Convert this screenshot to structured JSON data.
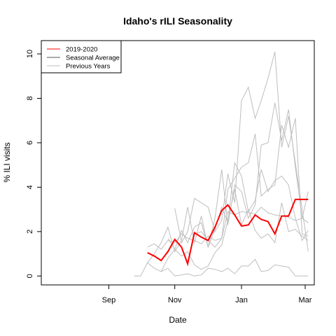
{
  "chart_data": {
    "type": "line",
    "title": "Idaho's rILI Seasonality",
    "xlabel": "Date",
    "ylabel": "% ILI visits",
    "x_unit": "weeks since Jul 1",
    "xlim": [
      0.0,
      36.0
    ],
    "ylim": [
      -0.4,
      10.6
    ],
    "x_ticks": [
      {
        "label": "Sep",
        "value": 8.9
      },
      {
        "label": "Nov",
        "value": 17.6
      },
      {
        "label": "Jan",
        "value": 26.4
      },
      {
        "label": "Mar",
        "value": 34.8
      }
    ],
    "y_ticks": [
      0,
      2,
      4,
      6,
      8,
      10
    ],
    "grid": false,
    "legend_position": "top-left",
    "legend": [
      {
        "label": "2019-2020",
        "color": "#ff0000"
      },
      {
        "label": "Seasonal Average",
        "color": "#555555"
      },
      {
        "label": "Previous Years",
        "color": "#bebebe"
      }
    ],
    "series": [
      {
        "name": "2019-2020",
        "color": "#ff0000",
        "x": [
          14.0,
          14.9,
          15.8,
          16.7,
          17.6,
          18.5,
          19.3,
          20.2,
          21.1,
          22.0,
          22.9,
          23.8,
          24.6,
          25.5,
          26.4,
          27.3,
          28.2,
          29.0,
          29.9,
          30.8,
          31.7,
          32.6,
          33.5,
          34.4,
          35.2
        ],
        "y": [
          1.05,
          0.9,
          0.7,
          1.1,
          1.65,
          1.3,
          0.55,
          1.95,
          1.75,
          1.6,
          2.2,
          2.95,
          3.2,
          2.75,
          2.25,
          2.3,
          2.75,
          2.55,
          2.45,
          1.9,
          2.7,
          2.7,
          3.45,
          3.45,
          3.45
        ]
      },
      {
        "name": "Seasonal Average",
        "color": "#555555",
        "x": [],
        "y": []
      },
      {
        "name": "Previous Years",
        "color": "#bebebe",
        "lines": [
          {
            "x": [
              14.0,
              14.9,
              15.8,
              16.7,
              17.6,
              18.5,
              19.3,
              20.2,
              21.1,
              22.0,
              22.9,
              23.8,
              24.6,
              25.5,
              26.4,
              27.3,
              28.2,
              29.0,
              29.9,
              30.8,
              31.7,
              32.6,
              33.5,
              34.4,
              35.2
            ],
            "y": [
              1.3,
              1.45,
              1.2,
              1.6,
              1.5,
              1.9,
              1.7,
              1.6,
              1.45,
              1.8,
              1.6,
              1.7,
              2.9,
              2.75,
              2.9,
              2.85,
              2.8,
              3.1,
              2.85,
              2.75,
              2.7,
              2.65,
              2.5,
              2.6,
              2.4
            ]
          },
          {
            "x": [
              14.0,
              14.9,
              15.8,
              16.7,
              17.6,
              18.5,
              19.3,
              20.2,
              21.1,
              22.0,
              22.9,
              23.8,
              24.6,
              25.5,
              26.4,
              27.3,
              28.2,
              29.0,
              29.9,
              30.8,
              31.7,
              32.6,
              33.5,
              34.4,
              35.2
            ],
            "y": [
              0.6,
              1.0,
              1.5,
              2.2,
              1.1,
              1.6,
              3.1,
              1.5,
              2.7,
              1.3,
              2.6,
              4.8,
              2.3,
              4.1,
              3.8,
              2.6,
              3.2,
              5.9,
              6.0,
              7.8,
              6.1,
              7.5,
              4.9,
              2.6,
              3.8
            ]
          },
          {
            "x": [
              16.7,
              17.6,
              18.5,
              19.3,
              20.2,
              21.1,
              22.0,
              22.9,
              23.8,
              24.6,
              25.5,
              26.4,
              27.3,
              28.2,
              29.0,
              29.9,
              30.8,
              31.7,
              32.6,
              33.5,
              34.4,
              35.2
            ],
            "y": [
              1.7,
              1.2,
              2.05,
              1.5,
              2.2,
              2.4,
              1.3,
              2.1,
              3.1,
              2.4,
              5.1,
              4.5,
              2.9,
              3.4,
              4.8,
              3.8,
              4.3,
              4.5,
              4.1,
              2.6,
              1.6,
              2.05
            ]
          },
          {
            "x": [
              17.6,
              18.5,
              19.3,
              20.2,
              21.1,
              22.0,
              22.9,
              23.8,
              24.6,
              25.5,
              26.4,
              27.3,
              28.2,
              29.0,
              29.9,
              30.8,
              31.7,
              32.6,
              33.5,
              34.4,
              35.2
            ],
            "y": [
              3.05,
              1.5,
              2.0,
              3.5,
              3.3,
              3.1,
              2.0,
              2.5,
              4.6,
              3.3,
              7.9,
              8.5,
              7.1,
              7.9,
              8.9,
              10.1,
              5.8,
              7.2,
              5.1,
              3.0,
              1.1
            ]
          },
          {
            "x": [
              20.2,
              21.1,
              22.0,
              22.9,
              23.8,
              24.6,
              25.5,
              26.4,
              27.3,
              28.2,
              29.0,
              29.9,
              30.8,
              31.7,
              32.6,
              33.5,
              34.4,
              35.2
            ],
            "y": [
              1.9,
              2.0,
              1.6,
              1.3,
              1.7,
              3.9,
              4.4,
              4.9,
              5.1,
              6.4,
              3.6,
              3.9,
              4.1,
              6.8,
              5.8,
              7.1,
              1.9,
              1.8
            ]
          },
          {
            "x": [
              15.8,
              16.7,
              17.6,
              18.5,
              19.3,
              20.2,
              21.1,
              22.0,
              22.9,
              23.8,
              24.6,
              25.5,
              26.4,
              27.3,
              28.2,
              29.0,
              29.9,
              30.8,
              31.7,
              32.6,
              33.5,
              34.4,
              35.2
            ],
            "y": [
              0.2,
              0.8,
              1.2,
              0.9,
              1.1,
              0.5,
              0.3,
              0.45,
              1.05,
              1.4,
              2.5,
              3.9,
              2.3,
              3.0,
              2.05,
              1.7,
              1.9,
              1.5,
              3.3,
              2.0,
              2.1,
              1.8,
              1.6
            ]
          },
          {
            "x": [
              12.2,
              13.1,
              14.0,
              14.9,
              15.8,
              16.7,
              17.6,
              18.5,
              19.3,
              20.2,
              21.1,
              22.0,
              22.9,
              23.8,
              24.6,
              25.5,
              26.4,
              27.3,
              28.2,
              29.0,
              29.9,
              30.8,
              31.7,
              32.6,
              33.5,
              34.4,
              35.2
            ],
            "y": [
              0.0,
              0.0,
              0.6,
              0.35,
              0.2,
              0.35,
              0.0,
              0.05,
              0.1,
              0.0,
              0.05,
              0.35,
              0.3,
              0.2,
              0.35,
              0.1,
              0.45,
              0.45,
              0.75,
              0.2,
              0.25,
              0.5,
              0.45,
              0.4,
              0.0,
              0.0,
              0.0
            ]
          }
        ]
      }
    ]
  }
}
